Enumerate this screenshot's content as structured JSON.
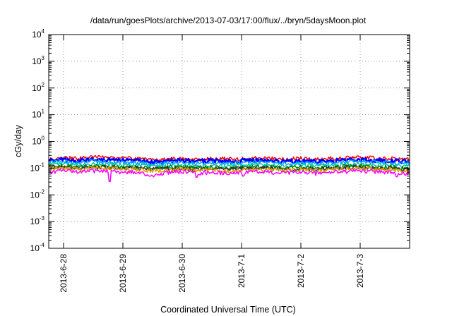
{
  "chart_data": {
    "type": "line",
    "title": "/data/run/goesPlots/archive/2013-07-03/17:00/flux/../bryn/5daysMoon.plot",
    "xlabel": "Coordinated Universal Time (UTC)",
    "ylabel": "cGy/day",
    "yscale": "log",
    "ylim": [
      0.0001,
      10000
    ],
    "xlim": [
      "2013-06-27T18:00",
      "2013-07-03T20:00"
    ],
    "grid": "dotted, at major ticks",
    "legend": "none",
    "x_ticks": [
      "2013-6-28",
      "2013-6-29",
      "2013-6-30",
      "2013-7-1",
      "2013-7-2",
      "2013-7-3"
    ],
    "x_tick_dates": [
      "2013-06-28",
      "2013-06-29",
      "2013-06-30",
      "2013-07-01",
      "2013-07-02",
      "2013-07-03"
    ],
    "y_ticks": [
      {
        "base": "10",
        "exp": "4",
        "value": 10000
      },
      {
        "base": "10",
        "exp": "3",
        "value": 1000
      },
      {
        "base": "10",
        "exp": "2",
        "value": 100
      },
      {
        "base": "10",
        "exp": "1",
        "value": 10
      },
      {
        "base": "10",
        "exp": "0",
        "value": 1
      },
      {
        "base": "10",
        "exp": "-1",
        "value": 0.1
      },
      {
        "base": "10",
        "exp": "-2",
        "value": 0.01
      },
      {
        "base": "10",
        "exp": "-3",
        "value": 0.001
      },
      {
        "base": "10",
        "exp": "-4",
        "value": 0.0001
      }
    ],
    "x": [
      "2013-06-27T18:00",
      "2013-06-28T00:00",
      "2013-06-28T06:00",
      "2013-06-28T12:00",
      "2013-06-28T18:00",
      "2013-06-29T00:00",
      "2013-06-29T06:00",
      "2013-06-29T12:00",
      "2013-06-29T18:00",
      "2013-06-30T00:00",
      "2013-06-30T06:00",
      "2013-06-30T12:00",
      "2013-06-30T18:00",
      "2013-07-01T00:00",
      "2013-07-01T06:00",
      "2013-07-01T12:00",
      "2013-07-01T18:00",
      "2013-07-02T00:00",
      "2013-07-02T06:00",
      "2013-07-02T12:00",
      "2013-07-02T18:00",
      "2013-07-03T00:00",
      "2013-07-03T06:00",
      "2013-07-03T12:00",
      "2013-07-03T18:00"
    ],
    "series": [
      {
        "color": "#ff0000",
        "values": [
          0.24,
          0.25,
          0.23,
          0.26,
          0.25,
          0.24,
          0.23,
          0.2,
          0.22,
          0.24,
          0.21,
          0.23,
          0.22,
          0.22,
          0.24,
          0.23,
          0.22,
          0.23,
          0.22,
          0.23,
          0.24,
          0.25,
          0.24,
          0.23,
          0.21
        ]
      },
      {
        "color": "#0000ff",
        "values": [
          0.2,
          0.21,
          0.19,
          0.22,
          0.21,
          0.2,
          0.19,
          0.17,
          0.18,
          0.2,
          0.18,
          0.19,
          0.18,
          0.19,
          0.2,
          0.19,
          0.18,
          0.19,
          0.18,
          0.19,
          0.2,
          0.21,
          0.2,
          0.19,
          0.18
        ]
      },
      {
        "color": "#00a0ff",
        "values": [
          0.17,
          0.18,
          0.16,
          0.18,
          0.17,
          0.16,
          0.16,
          0.14,
          0.15,
          0.16,
          0.15,
          0.16,
          0.15,
          0.16,
          0.17,
          0.16,
          0.15,
          0.16,
          0.15,
          0.16,
          0.17,
          0.18,
          0.17,
          0.16,
          0.15
        ]
      },
      {
        "color": "#00c8a0",
        "values": [
          0.14,
          0.14,
          0.13,
          0.14,
          0.14,
          0.13,
          0.13,
          0.12,
          0.12,
          0.13,
          0.12,
          0.13,
          0.12,
          0.13,
          0.14,
          0.13,
          0.12,
          0.13,
          0.12,
          0.13,
          0.14,
          0.14,
          0.14,
          0.13,
          0.12
        ]
      },
      {
        "color": "#008000",
        "values": [
          0.12,
          0.12,
          0.11,
          0.12,
          0.12,
          0.11,
          0.11,
          0.1,
          0.11,
          0.11,
          0.1,
          0.11,
          0.1,
          0.11,
          0.11,
          0.11,
          0.1,
          0.11,
          0.1,
          0.11,
          0.12,
          0.12,
          0.11,
          0.11,
          0.1
        ]
      },
      {
        "color": "#303030",
        "values": [
          0.11,
          0.11,
          0.1,
          0.11,
          0.11,
          0.1,
          0.1,
          0.09,
          0.1,
          0.1,
          0.09,
          0.1,
          0.09,
          0.1,
          0.1,
          0.1,
          0.09,
          0.1,
          0.09,
          0.1,
          0.11,
          0.11,
          0.1,
          0.1,
          0.09
        ]
      },
      {
        "color": "#e0a000",
        "values": [
          0.095,
          0.1,
          0.09,
          0.1,
          0.1,
          0.09,
          0.09,
          0.08,
          0.085,
          0.09,
          0.08,
          0.09,
          0.08,
          0.085,
          0.09,
          0.09,
          0.08,
          0.09,
          0.08,
          0.085,
          0.095,
          0.1,
          0.09,
          0.09,
          0.08
        ]
      },
      {
        "color": "#ff00ff",
        "values": [
          0.075,
          0.08,
          0.07,
          0.08,
          0.08,
          0.07,
          0.07,
          0.05,
          0.07,
          0.075,
          0.065,
          0.07,
          0.065,
          0.07,
          0.075,
          0.07,
          0.065,
          0.07,
          0.065,
          0.07,
          0.075,
          0.08,
          0.075,
          0.07,
          0.065
        ]
      }
    ]
  }
}
